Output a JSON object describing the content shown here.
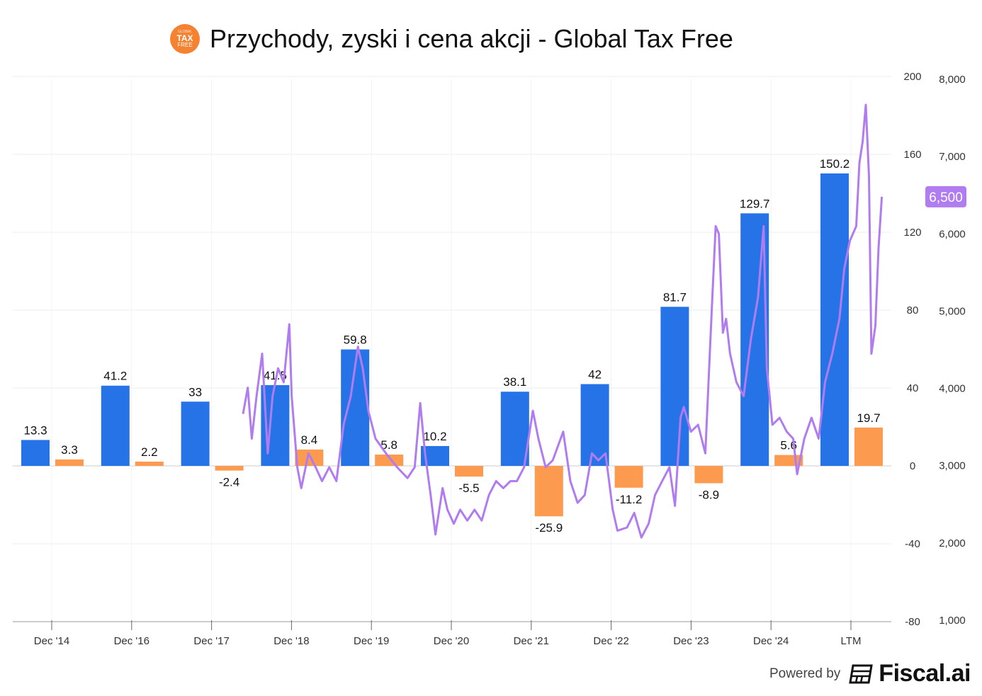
{
  "title": "Przychody, zyski i cena akcji - Global Tax Free",
  "logo": {
    "lines": [
      "GLOBAL",
      "TAX",
      "FREE"
    ],
    "color": "#f58231"
  },
  "footer": {
    "powered_by": "Powered by",
    "brand": "Fiscal.ai"
  },
  "chart_data": {
    "type": "bar",
    "title": "Przychody, zyski i cena akcji - Global Tax Free",
    "categories": [
      "Dec '14",
      "Dec '16",
      "Dec '17",
      "Dec '18",
      "Dec '19",
      "Dec '20",
      "Dec '21",
      "Dec '22",
      "Dec '23",
      "Dec '24",
      "LTM"
    ],
    "series": [
      {
        "color": "#2673e8",
        "values": [
          13.3,
          41.2,
          33,
          41.5,
          59.8,
          10.2,
          38.1,
          42,
          81.7,
          129.7,
          150.2
        ]
      },
      {
        "color": "#fc9a4f",
        "values": [
          3.3,
          2.2,
          -2.4,
          8.4,
          5.8,
          -5.5,
          -25.9,
          -11.2,
          -8.9,
          5.6,
          19.7
        ]
      }
    ],
    "price_line": {
      "type": "line",
      "color": "#b07cf0",
      "last_value_label": "6,500",
      "points": [
        [
          2018.35,
          3670
        ],
        [
          2018.41,
          4010
        ],
        [
          2018.46,
          3350
        ],
        [
          2018.52,
          3900
        ],
        [
          2018.59,
          4450
        ],
        [
          2018.66,
          3160
        ],
        [
          2018.72,
          3900
        ],
        [
          2018.79,
          4260
        ],
        [
          2018.86,
          4080
        ],
        [
          2018.93,
          4830
        ],
        [
          2018.96,
          3900
        ],
        [
          2019.03,
          2980
        ],
        [
          2019.08,
          2710
        ],
        [
          2019.17,
          3160
        ],
        [
          2019.26,
          2980
        ],
        [
          2019.34,
          2800
        ],
        [
          2019.43,
          2980
        ],
        [
          2019.52,
          2800
        ],
        [
          2019.61,
          3530
        ],
        [
          2019.7,
          3900
        ],
        [
          2019.79,
          4540
        ],
        [
          2019.85,
          4260
        ],
        [
          2019.92,
          3710
        ],
        [
          2020.01,
          3350
        ],
        [
          2020.14,
          3160
        ],
        [
          2020.28,
          2980
        ],
        [
          2020.41,
          2840
        ],
        [
          2020.5,
          2980
        ],
        [
          2020.57,
          3810
        ],
        [
          2020.63,
          3160
        ],
        [
          2020.7,
          2620
        ],
        [
          2020.76,
          2110
        ],
        [
          2020.85,
          2710
        ],
        [
          2020.91,
          2430
        ],
        [
          2020.99,
          2250
        ],
        [
          2021.07,
          2430
        ],
        [
          2021.16,
          2290
        ],
        [
          2021.25,
          2430
        ],
        [
          2021.34,
          2290
        ],
        [
          2021.43,
          2620
        ],
        [
          2021.52,
          2800
        ],
        [
          2021.61,
          2710
        ],
        [
          2021.7,
          2800
        ],
        [
          2021.78,
          2800
        ],
        [
          2021.87,
          2980
        ],
        [
          2021.98,
          3710
        ],
        [
          2022.05,
          3350
        ],
        [
          2022.14,
          2980
        ],
        [
          2022.23,
          3070
        ],
        [
          2022.36,
          3440
        ],
        [
          2022.45,
          2800
        ],
        [
          2022.54,
          2520
        ],
        [
          2022.63,
          2620
        ],
        [
          2022.72,
          3160
        ],
        [
          2022.8,
          3070
        ],
        [
          2022.89,
          3160
        ],
        [
          2022.98,
          2430
        ],
        [
          2023.04,
          2160
        ],
        [
          2023.16,
          2200
        ],
        [
          2023.25,
          2390
        ],
        [
          2023.34,
          2070
        ],
        [
          2023.43,
          2250
        ],
        [
          2023.51,
          2620
        ],
        [
          2023.6,
          2800
        ],
        [
          2023.69,
          2980
        ],
        [
          2023.76,
          2480
        ],
        [
          2023.83,
          3620
        ],
        [
          2023.87,
          3760
        ],
        [
          2023.96,
          3440
        ],
        [
          2024.05,
          3530
        ],
        [
          2024.14,
          3160
        ],
        [
          2024.18,
          4080
        ],
        [
          2024.22,
          5000
        ],
        [
          2024.27,
          6100
        ],
        [
          2024.31,
          6000
        ],
        [
          2024.36,
          4720
        ],
        [
          2024.4,
          4900
        ],
        [
          2024.45,
          4450
        ],
        [
          2024.53,
          4080
        ],
        [
          2024.62,
          3900
        ],
        [
          2024.71,
          4630
        ],
        [
          2024.8,
          5180
        ],
        [
          2024.87,
          6100
        ],
        [
          2024.91,
          4260
        ],
        [
          2024.98,
          3530
        ],
        [
          2025.07,
          3620
        ],
        [
          2025.16,
          3440
        ],
        [
          2025.24,
          3350
        ],
        [
          2025.29,
          2890
        ],
        [
          2025.38,
          3350
        ],
        [
          2025.47,
          3620
        ],
        [
          2025.56,
          3350
        ],
        [
          2025.64,
          4080
        ],
        [
          2025.73,
          4450
        ],
        [
          2025.82,
          4900
        ],
        [
          2025.88,
          5550
        ],
        [
          2025.95,
          5910
        ],
        [
          2026.03,
          6100
        ],
        [
          2026.07,
          6920
        ],
        [
          2026.11,
          7190
        ],
        [
          2026.15,
          7670
        ],
        [
          2026.19,
          6740
        ],
        [
          2026.22,
          4450
        ],
        [
          2026.27,
          4810
        ],
        [
          2026.31,
          5820
        ],
        [
          2026.35,
          6480
        ]
      ]
    },
    "y_left": {
      "ylim": [
        -80,
        200
      ],
      "ticks": [
        "-80",
        "-40",
        "0",
        "40",
        "80",
        "120",
        "160",
        "200"
      ]
    },
    "y_right": {
      "ylim": [
        1000,
        8000
      ],
      "ticks": [
        "1,000",
        "2,000",
        "3,000",
        "4,000",
        "5,000",
        "6,000",
        "7,000",
        "8,000"
      ]
    },
    "grid": true,
    "legend": "none"
  }
}
